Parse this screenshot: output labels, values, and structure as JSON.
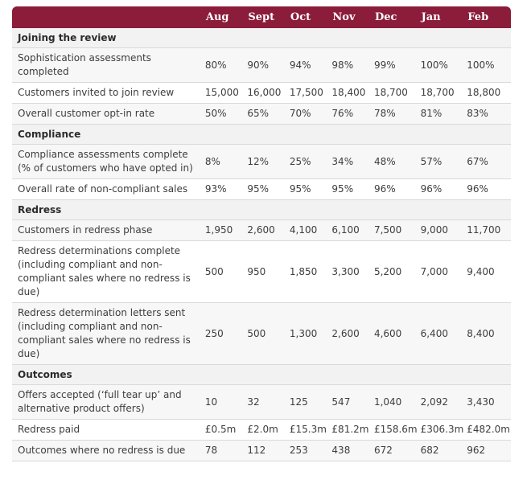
{
  "header": {
    "months": [
      "Aug",
      "Sept",
      "Oct",
      "Nov",
      "Dec",
      "Jan",
      "Feb"
    ]
  },
  "sections": [
    {
      "title": "Joining the review",
      "rows": [
        {
          "label": "Sophistication assessments completed",
          "values": [
            "80%",
            "90%",
            "94%",
            "98%",
            "99%",
            "100%",
            "100%"
          ]
        },
        {
          "label": "Customers invited to join review",
          "values": [
            "15,000",
            "16,000",
            "17,500",
            "18,400",
            "18,700",
            "18,700",
            "18,800"
          ]
        },
        {
          "label": "Overall customer opt-in rate",
          "values": [
            "50%",
            "65%",
            "70%",
            "76%",
            "78%",
            "81%",
            "83%"
          ]
        }
      ]
    },
    {
      "title": "Compliance",
      "rows": [
        {
          "label": "Compliance assessments complete (% of customers who have opted in)",
          "values": [
            "8%",
            "12%",
            "25%",
            "34%",
            "48%",
            "57%",
            "67%"
          ]
        },
        {
          "label": "Overall rate of non-compliant sales",
          "values": [
            "93%",
            "95%",
            "95%",
            "95%",
            "96%",
            "96%",
            "96%"
          ]
        }
      ]
    },
    {
      "title": "Redress",
      "rows": [
        {
          "label": "Customers in redress phase",
          "values": [
            "1,950",
            "2,600",
            "4,100",
            "6,100",
            "7,500",
            "9,000",
            "11,700"
          ]
        },
        {
          "label": "Redress determinations complete (including compliant and non-compliant sales where no redress is due)",
          "values": [
            "500",
            "950",
            "1,850",
            "3,300",
            "5,200",
            "7,000",
            "9,400"
          ]
        },
        {
          "label": "Redress determination letters sent (including compliant and non-compliant sales where no redress is due)",
          "values": [
            "250",
            "500",
            "1,300",
            "2,600",
            "4,600",
            "6,400",
            "8,400"
          ]
        }
      ]
    },
    {
      "title": "Outcomes",
      "rows": [
        {
          "label": "Offers accepted (‘full tear up’ and alternative product offers)",
          "values": [
            "10",
            "32",
            "125",
            "547",
            "1,040",
            "2,092",
            "3,430"
          ]
        },
        {
          "label": "Redress paid",
          "values": [
            "£0.5m",
            "£2.0m",
            "£15.3m",
            "£81.2m",
            "£158.6m",
            "£306.3m",
            "£482.0m"
          ]
        },
        {
          "label": "Outcomes where no redress is due",
          "values": [
            "78",
            "112",
            "253",
            "438",
            "672",
            "682",
            "962"
          ]
        }
      ]
    }
  ]
}
